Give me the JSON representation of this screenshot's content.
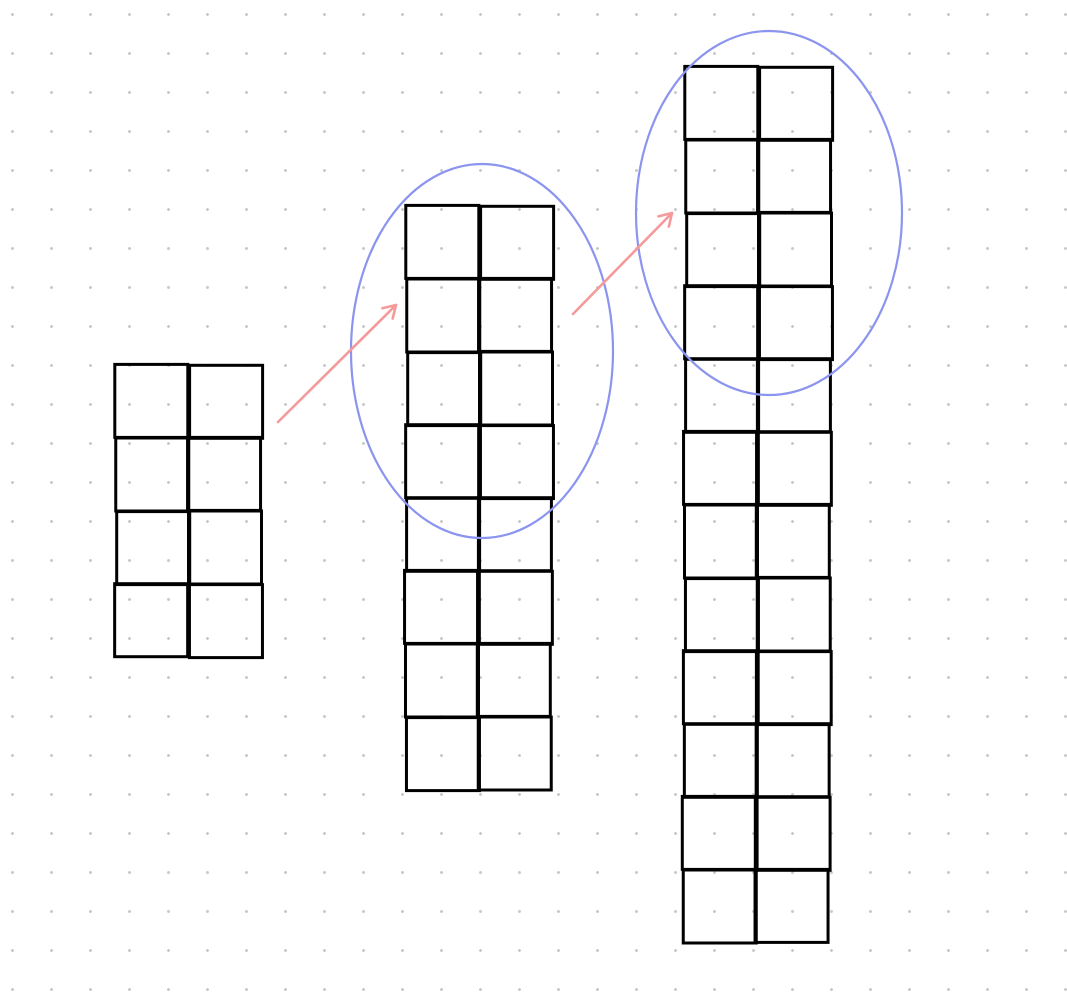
{
  "canvas": {
    "background": "#ffffff",
    "dot_color": "#c9c9c9"
  },
  "colors": {
    "grid_stroke": "#000000",
    "arrow": "#f59a9a",
    "ellipse": "#8b94ee"
  },
  "figures": [
    {
      "name": "figure-1",
      "columns": 2,
      "rows": 4,
      "circled_rows": 0
    },
    {
      "name": "figure-2",
      "columns": 2,
      "rows": 8,
      "circled_rows": 4
    },
    {
      "name": "figure-3",
      "columns": 2,
      "rows": 12,
      "circled_rows": 4
    }
  ],
  "arrows": [
    {
      "name": "arrow-1-to-2",
      "from": "figure-1",
      "to": "figure-2"
    },
    {
      "name": "arrow-2-to-3",
      "from": "figure-2",
      "to": "figure-3"
    }
  ]
}
